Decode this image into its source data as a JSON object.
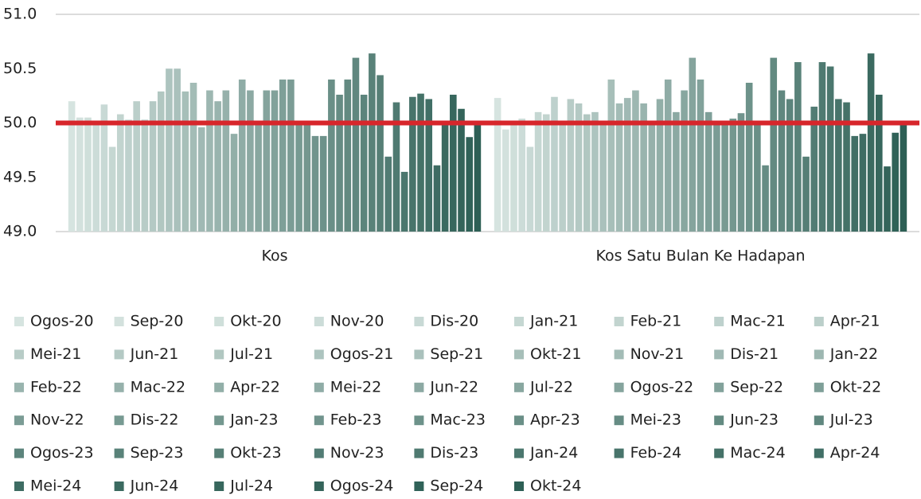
{
  "chart_data": {
    "type": "grouped_bar",
    "categories": [
      "Kos",
      "Kos Satu Bulan Ke Hadapan"
    ],
    "ylim": [
      49,
      51
    ],
    "yticks": [
      {
        "value": 49,
        "label": "49.0"
      },
      {
        "value": 49.5,
        "label": "49.5"
      },
      {
        "value": 50,
        "label": "50.0"
      },
      {
        "value": 50.5,
        "label": "50.5"
      },
      {
        "value": 51,
        "label": "51.0"
      }
    ],
    "reference_line": {
      "value": 50,
      "color": "#d7262b"
    },
    "legend": "bottom",
    "series": [
      {
        "name": "Ogos-20",
        "color": "#d6e4e0",
        "values": [
          50.2,
          50.23
        ]
      },
      {
        "name": "Sep-20",
        "color": "#d3e1dd",
        "values": [
          50.05,
          49.94
        ]
      },
      {
        "name": "Okt-20",
        "color": "#cfdfda",
        "values": [
          50.05,
          50.0
        ]
      },
      {
        "name": "Nov-20",
        "color": "#ccdcd8",
        "values": [
          50.0,
          50.04
        ]
      },
      {
        "name": "Dis-20",
        "color": "#c8d9d5",
        "values": [
          50.17,
          49.78
        ]
      },
      {
        "name": "Jan-21",
        "color": "#c5d7d2",
        "values": [
          49.78,
          50.1
        ]
      },
      {
        "name": "Feb-21",
        "color": "#c2d4cf",
        "values": [
          50.08,
          50.08
        ]
      },
      {
        "name": "Mac-21",
        "color": "#bed1cd",
        "values": [
          50.03,
          50.24
        ]
      },
      {
        "name": "Apr-21",
        "color": "#bbcfca",
        "values": [
          50.2,
          50.0
        ]
      },
      {
        "name": "Mei-21",
        "color": "#b8ccc7",
        "values": [
          50.03,
          50.22
        ]
      },
      {
        "name": "Jun-21",
        "color": "#b4c9c4",
        "values": [
          50.2,
          50.18
        ]
      },
      {
        "name": "Jul-21",
        "color": "#b1c7c1",
        "values": [
          50.29,
          50.08
        ]
      },
      {
        "name": "Ogos-21",
        "color": "#adc4bf",
        "values": [
          50.5,
          50.1
        ]
      },
      {
        "name": "Sep-21",
        "color": "#aac1bc",
        "values": [
          50.5,
          50.0
        ]
      },
      {
        "name": "Okt-21",
        "color": "#a7bfb9",
        "values": [
          50.29,
          50.4
        ]
      },
      {
        "name": "Nov-21",
        "color": "#a3bcb6",
        "values": [
          50.37,
          50.18
        ]
      },
      {
        "name": "Dis-21",
        "color": "#a0b9b4",
        "values": [
          49.96,
          50.23
        ]
      },
      {
        "name": "Jan-22",
        "color": "#9db7b1",
        "values": [
          50.3,
          50.3
        ]
      },
      {
        "name": "Feb-22",
        "color": "#99b4ae",
        "values": [
          50.2,
          50.18
        ]
      },
      {
        "name": "Mac-22",
        "color": "#96b1ab",
        "values": [
          50.3,
          50.0
        ]
      },
      {
        "name": "Apr-22",
        "color": "#92afa8",
        "values": [
          49.9,
          50.22
        ]
      },
      {
        "name": "Mei-22",
        "color": "#8faca6",
        "values": [
          50.4,
          50.4
        ]
      },
      {
        "name": "Jun-22",
        "color": "#8ca9a3",
        "values": [
          50.3,
          50.1
        ]
      },
      {
        "name": "Jul-22",
        "color": "#88a7a0",
        "values": [
          50.0,
          50.3
        ]
      },
      {
        "name": "Ogos-22",
        "color": "#85a49d",
        "values": [
          50.3,
          50.6
        ]
      },
      {
        "name": "Sep-22",
        "color": "#82a29b",
        "values": [
          50.3,
          50.4
        ]
      },
      {
        "name": "Okt-22",
        "color": "#7e9f98",
        "values": [
          50.4,
          50.1
        ]
      },
      {
        "name": "Nov-22",
        "color": "#7b9c95",
        "values": [
          50.4,
          50.0
        ]
      },
      {
        "name": "Dis-22",
        "color": "#779a92",
        "values": [
          50.0,
          50.0
        ]
      },
      {
        "name": "Jan-23",
        "color": "#74978f",
        "values": [
          49.98,
          50.04
        ]
      },
      {
        "name": "Feb-23",
        "color": "#71948d",
        "values": [
          49.88,
          50.09
        ]
      },
      {
        "name": "Mac-23",
        "color": "#6d928a",
        "values": [
          49.88,
          50.37
        ]
      },
      {
        "name": "Apr-23",
        "color": "#6a8f87",
        "values": [
          50.4,
          50.0
        ]
      },
      {
        "name": "Mei-23",
        "color": "#668c84",
        "values": [
          50.26,
          49.61
        ]
      },
      {
        "name": "Jun-23",
        "color": "#638a81",
        "values": [
          50.4,
          50.6
        ]
      },
      {
        "name": "Jul-23",
        "color": "#60877f",
        "values": [
          50.6,
          50.3
        ]
      },
      {
        "name": "Ogos-23",
        "color": "#5c847c",
        "values": [
          50.26,
          50.22
        ]
      },
      {
        "name": "Sep-23",
        "color": "#598279",
        "values": [
          50.64,
          50.56
        ]
      },
      {
        "name": "Okt-23",
        "color": "#567f76",
        "values": [
          50.44,
          49.69
        ]
      },
      {
        "name": "Nov-23",
        "color": "#527c74",
        "values": [
          49.69,
          50.15
        ]
      },
      {
        "name": "Dis-23",
        "color": "#4f7a71",
        "values": [
          50.19,
          50.56
        ]
      },
      {
        "name": "Jan-24",
        "color": "#4b776e",
        "values": [
          49.55,
          50.52
        ]
      },
      {
        "name": "Feb-24",
        "color": "#48746b",
        "values": [
          50.24,
          50.22
        ]
      },
      {
        "name": "Mac-24",
        "color": "#457268",
        "values": [
          50.27,
          50.19
        ]
      },
      {
        "name": "Apr-24",
        "color": "#416f66",
        "values": [
          50.22,
          49.88
        ]
      },
      {
        "name": "Mei-24",
        "color": "#3e6c63",
        "values": [
          49.61,
          49.9
        ]
      },
      {
        "name": "Jun-24",
        "color": "#3b6a60",
        "values": [
          49.98,
          50.64
        ]
      },
      {
        "name": "Jul-24",
        "color": "#37675d",
        "values": [
          50.26,
          50.26
        ]
      },
      {
        "name": "Ogos-24",
        "color": "#34645a",
        "values": [
          50.13,
          49.6
        ]
      },
      {
        "name": "Sep-24",
        "color": "#306258",
        "values": [
          49.87,
          49.91
        ]
      },
      {
        "name": "Okt-24",
        "color": "#2d5f55",
        "values": [
          50.0,
          50.0
        ]
      }
    ]
  }
}
